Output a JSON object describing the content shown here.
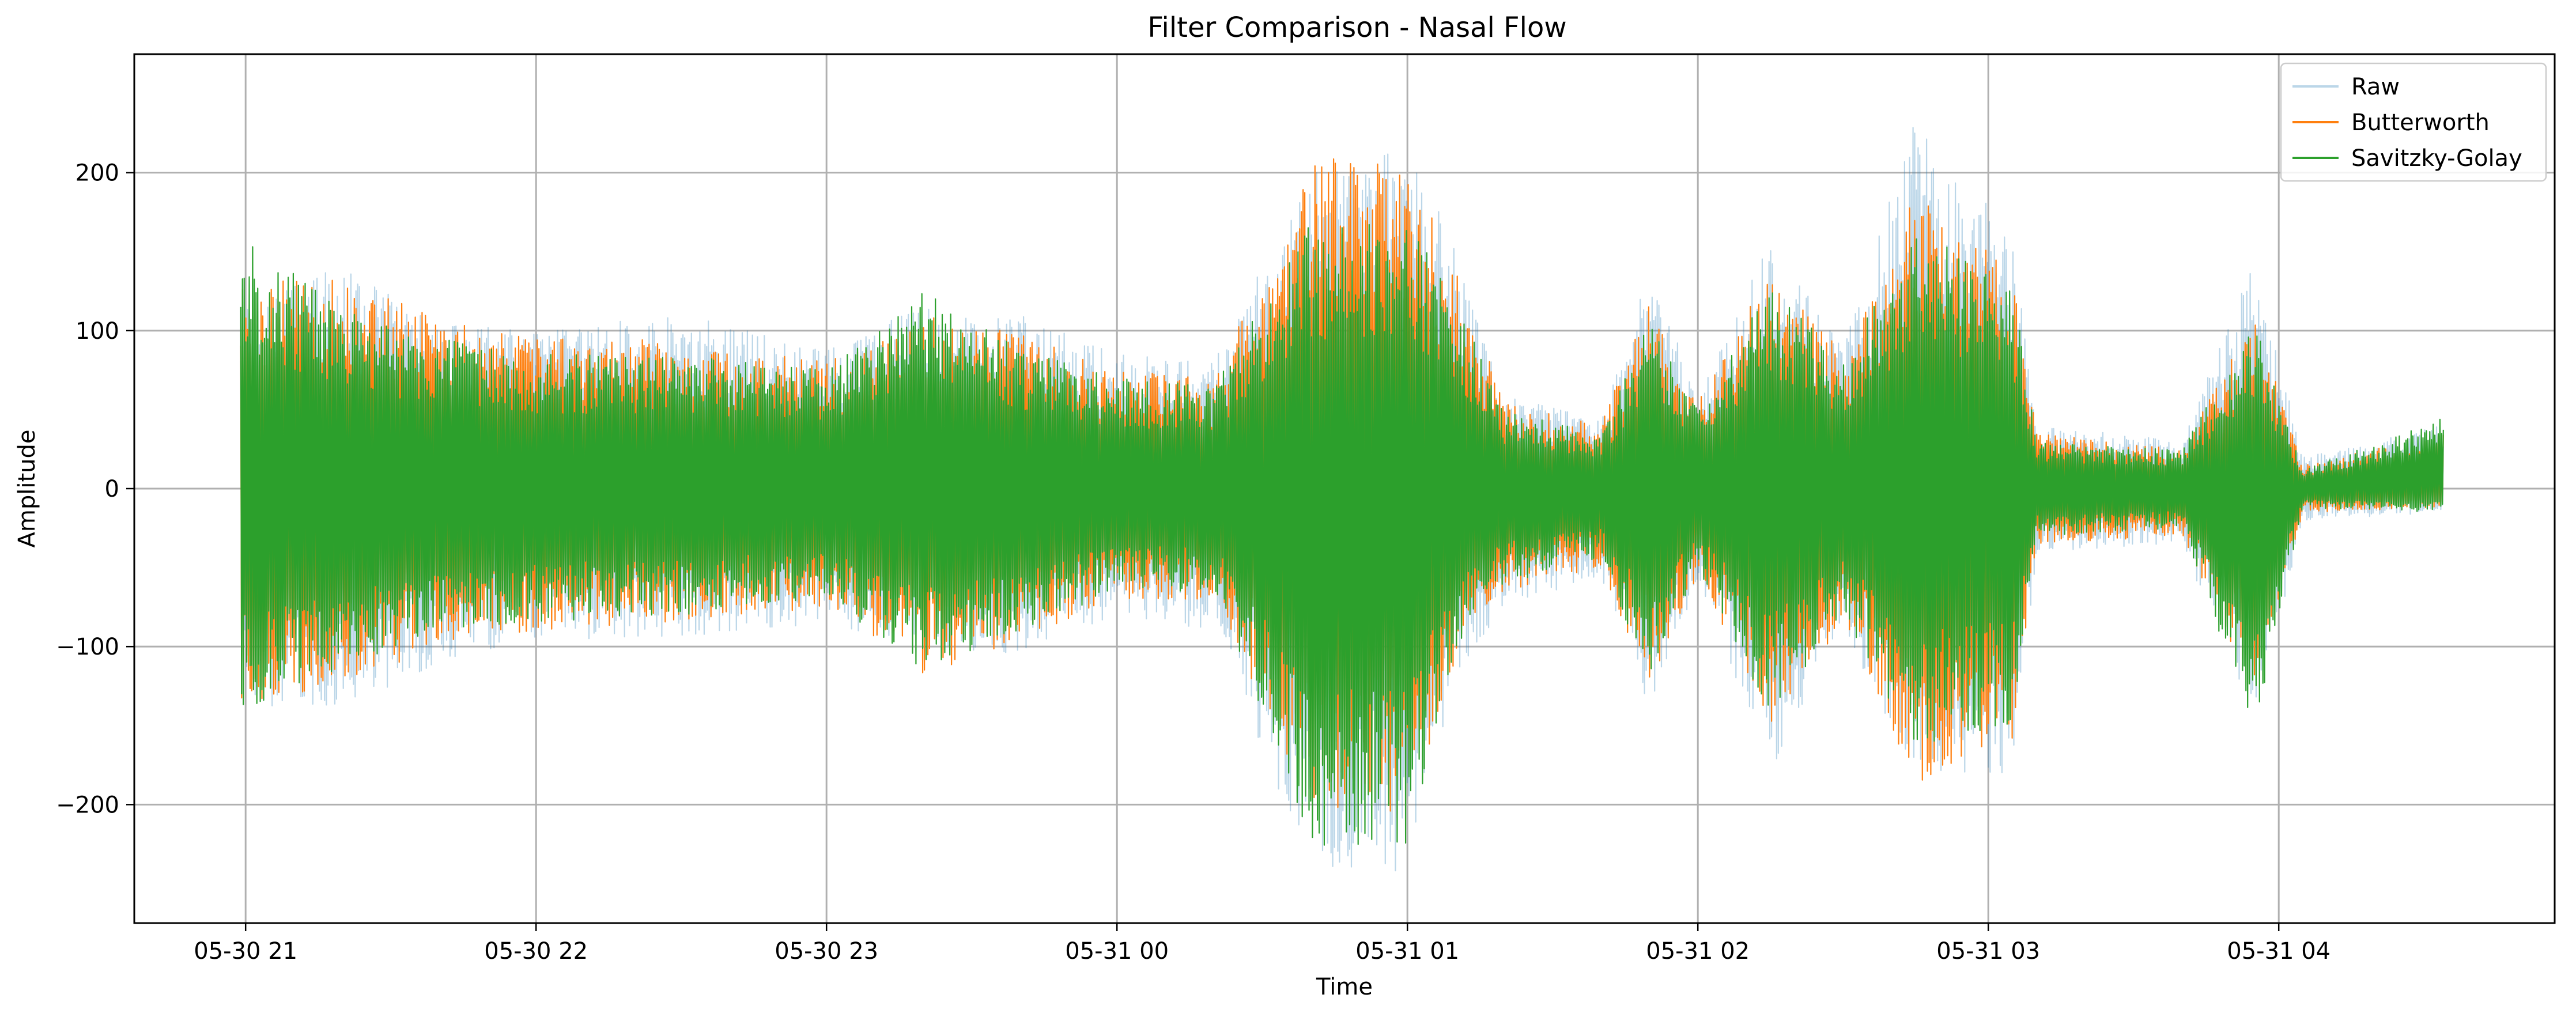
{
  "chart_data": {
    "type": "line",
    "title": "Filter Comparison - Nasal Flow",
    "xlabel": "Time",
    "ylabel": "Amplitude",
    "x_start": "2024-05-30 20:59",
    "x_end": "2024-05-31 04:34",
    "xlim": [
      "2024-05-30 20:37",
      "2024-05-31 04:57"
    ],
    "ylim": [
      -275,
      275
    ],
    "x_ticks": [
      {
        "value": "2024-05-30 21:00",
        "label": "05-30 21"
      },
      {
        "value": "2024-05-30 22:00",
        "label": "05-30 22"
      },
      {
        "value": "2024-05-30 23:00",
        "label": "05-30 23"
      },
      {
        "value": "2024-05-31 00:00",
        "label": "05-31 00"
      },
      {
        "value": "2024-05-31 01:00",
        "label": "05-31 01"
      },
      {
        "value": "2024-05-31 02:00",
        "label": "05-31 02"
      },
      {
        "value": "2024-05-31 03:00",
        "label": "05-31 03"
      },
      {
        "value": "2024-05-31 04:00",
        "label": "05-31 04"
      }
    ],
    "y_ticks": [
      {
        "value": 200,
        "label": "200"
      },
      {
        "value": 100,
        "label": "100"
      },
      {
        "value": 0,
        "label": "0"
      },
      {
        "value": -100,
        "label": "−100"
      },
      {
        "value": -200,
        "label": "−200"
      }
    ],
    "grid": true,
    "legend_position": "top-right",
    "series": [
      {
        "name": "Raw",
        "color": "#1f77b4",
        "opacity": 0.3,
        "envelope_note": "amplitude envelope in data units",
        "envelope": [
          {
            "t": "2024-05-30 20:59",
            "upper": 120,
            "lower": -145
          },
          {
            "t": "2024-05-30 21:20",
            "upper": 140,
            "lower": -140
          },
          {
            "t": "2024-05-30 21:40",
            "upper": 105,
            "lower": -110
          },
          {
            "t": "2024-05-30 22:00",
            "upper": 100,
            "lower": -95
          },
          {
            "t": "2024-05-30 22:30",
            "upper": 110,
            "lower": -95
          },
          {
            "t": "2024-05-30 23:00",
            "upper": 90,
            "lower": -85
          },
          {
            "t": "2024-05-30 23:20",
            "upper": 115,
            "lower": -100
          },
          {
            "t": "2024-05-30 23:40",
            "upper": 110,
            "lower": -105
          },
          {
            "t": "2024-05-31 00:00",
            "upper": 85,
            "lower": -80
          },
          {
            "t": "2024-05-31 00:20",
            "upper": 80,
            "lower": -90
          },
          {
            "t": "2024-05-31 00:40",
            "upper": 200,
            "lower": -240
          },
          {
            "t": "2024-05-31 01:00",
            "upper": 230,
            "lower": -245
          },
          {
            "t": "2024-05-31 01:10",
            "upper": 150,
            "lower": -120
          },
          {
            "t": "2024-05-31 01:20",
            "upper": 60,
            "lower": -75
          },
          {
            "t": "2024-05-31 01:40",
            "upper": 45,
            "lower": -55
          },
          {
            "t": "2024-05-31 01:50",
            "upper": 140,
            "lower": -140
          },
          {
            "t": "2024-05-31 02:00",
            "upper": 60,
            "lower": -60
          },
          {
            "t": "2024-05-31 02:15",
            "upper": 160,
            "lower": -180
          },
          {
            "t": "2024-05-31 02:30",
            "upper": 90,
            "lower": -90
          },
          {
            "t": "2024-05-31 02:45",
            "upper": 240,
            "lower": -185
          },
          {
            "t": "2024-05-31 03:05",
            "upper": 160,
            "lower": -180
          },
          {
            "t": "2024-05-31 03:10",
            "upper": 40,
            "lower": -40
          },
          {
            "t": "2024-05-31 03:40",
            "upper": 30,
            "lower": -35
          },
          {
            "t": "2024-05-31 03:55",
            "upper": 145,
            "lower": -150
          },
          {
            "t": "2024-05-31 04:05",
            "upper": 20,
            "lower": -20
          },
          {
            "t": "2024-05-31 04:34",
            "upper": 40,
            "lower": -15
          }
        ]
      },
      {
        "name": "Butterworth",
        "color": "#ff7f0e",
        "opacity": 1,
        "envelope": [
          {
            "t": "2024-05-30 20:59",
            "upper": 130,
            "lower": -135
          },
          {
            "t": "2024-05-30 21:20",
            "upper": 135,
            "lower": -125
          },
          {
            "t": "2024-05-30 21:40",
            "upper": 110,
            "lower": -100
          },
          {
            "t": "2024-05-30 22:00",
            "upper": 95,
            "lower": -90
          },
          {
            "t": "2024-05-30 22:30",
            "upper": 95,
            "lower": -85
          },
          {
            "t": "2024-05-30 23:00",
            "upper": 80,
            "lower": -75
          },
          {
            "t": "2024-05-30 23:20",
            "upper": 110,
            "lower": -120
          },
          {
            "t": "2024-05-30 23:40",
            "upper": 100,
            "lower": -95
          },
          {
            "t": "2024-05-31 00:00",
            "upper": 75,
            "lower": -70
          },
          {
            "t": "2024-05-31 00:20",
            "upper": 70,
            "lower": -70
          },
          {
            "t": "2024-05-31 00:40",
            "upper": 210,
            "lower": -200
          },
          {
            "t": "2024-05-31 01:00",
            "upper": 205,
            "lower": -215
          },
          {
            "t": "2024-05-31 01:10",
            "upper": 140,
            "lower": -110
          },
          {
            "t": "2024-05-31 01:20",
            "upper": 55,
            "lower": -65
          },
          {
            "t": "2024-05-31 01:40",
            "upper": 40,
            "lower": -50
          },
          {
            "t": "2024-05-31 01:50",
            "upper": 120,
            "lower": -125
          },
          {
            "t": "2024-05-31 02:00",
            "upper": 55,
            "lower": -55
          },
          {
            "t": "2024-05-31 02:15",
            "upper": 140,
            "lower": -150
          },
          {
            "t": "2024-05-31 02:30",
            "upper": 85,
            "lower": -85
          },
          {
            "t": "2024-05-31 02:45",
            "upper": 190,
            "lower": -190
          },
          {
            "t": "2024-05-31 03:05",
            "upper": 140,
            "lower": -160
          },
          {
            "t": "2024-05-31 03:10",
            "upper": 35,
            "lower": -35
          },
          {
            "t": "2024-05-31 03:40",
            "upper": 25,
            "lower": -30
          },
          {
            "t": "2024-05-31 03:55",
            "upper": 110,
            "lower": -130
          },
          {
            "t": "2024-05-31 04:05",
            "upper": 15,
            "lower": -15
          },
          {
            "t": "2024-05-31 04:34",
            "upper": 35,
            "lower": -12
          }
        ]
      },
      {
        "name": "Savitzky-Golay",
        "color": "#2ca02c",
        "opacity": 1,
        "envelope": [
          {
            "t": "2024-05-30 20:59",
            "upper": 160,
            "lower": -140
          },
          {
            "t": "2024-05-30 21:20",
            "upper": 115,
            "lower": -115
          },
          {
            "t": "2024-05-30 21:40",
            "upper": 95,
            "lower": -90
          },
          {
            "t": "2024-05-30 22:00",
            "upper": 85,
            "lower": -85
          },
          {
            "t": "2024-05-30 22:30",
            "upper": 85,
            "lower": -80
          },
          {
            "t": "2024-05-30 23:00",
            "upper": 75,
            "lower": -70
          },
          {
            "t": "2024-05-30 23:20",
            "upper": 125,
            "lower": -115
          },
          {
            "t": "2024-05-30 23:40",
            "upper": 90,
            "lower": -90
          },
          {
            "t": "2024-05-31 00:00",
            "upper": 70,
            "lower": -65
          },
          {
            "t": "2024-05-31 00:20",
            "upper": 65,
            "lower": -65
          },
          {
            "t": "2024-05-31 00:40",
            "upper": 170,
            "lower": -225
          },
          {
            "t": "2024-05-31 01:00",
            "upper": 175,
            "lower": -230
          },
          {
            "t": "2024-05-31 01:10",
            "upper": 120,
            "lower": -100
          },
          {
            "t": "2024-05-31 01:20",
            "upper": 50,
            "lower": -60
          },
          {
            "t": "2024-05-31 01:40",
            "upper": 35,
            "lower": -45
          },
          {
            "t": "2024-05-31 01:50",
            "upper": 110,
            "lower": -120
          },
          {
            "t": "2024-05-31 02:00",
            "upper": 50,
            "lower": -50
          },
          {
            "t": "2024-05-31 02:15",
            "upper": 130,
            "lower": -145
          },
          {
            "t": "2024-05-31 02:30",
            "upper": 80,
            "lower": -80
          },
          {
            "t": "2024-05-31 02:45",
            "upper": 165,
            "lower": -165
          },
          {
            "t": "2024-05-31 03:05",
            "upper": 130,
            "lower": -150
          },
          {
            "t": "2024-05-31 03:10",
            "upper": 30,
            "lower": -30
          },
          {
            "t": "2024-05-31 03:40",
            "upper": 25,
            "lower": -25
          },
          {
            "t": "2024-05-31 03:55",
            "upper": 105,
            "lower": -155
          },
          {
            "t": "2024-05-31 04:05",
            "upper": 12,
            "lower": -12
          },
          {
            "t": "2024-05-31 04:34",
            "upper": 45,
            "lower": -15
          }
        ]
      }
    ]
  }
}
